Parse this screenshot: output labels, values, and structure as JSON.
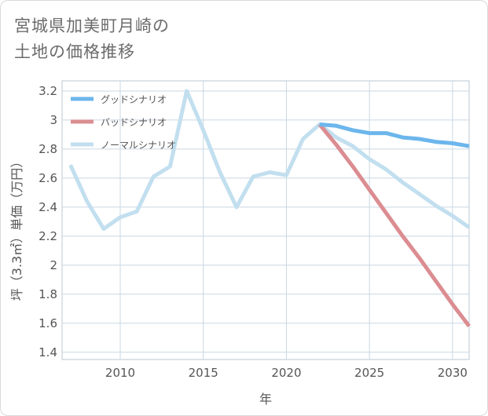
{
  "title": {
    "line1": "宮城県加美町月崎の",
    "line2": "土地の価格推移"
  },
  "chart_data": {
    "type": "line",
    "title": "宮城県加美町月崎の土地の価格推移",
    "xlabel": "年",
    "ylabel": "坪（3.3㎡）単価（万円）",
    "xlim": [
      2006.5,
      2031
    ],
    "ylim": [
      1.35,
      3.27
    ],
    "x_ticks": [
      2010,
      2015,
      2020,
      2025,
      2030
    ],
    "x_tick_labels": [
      "2010",
      "2015",
      "2020",
      "2025",
      "2030"
    ],
    "y_ticks": [
      1.4,
      1.6,
      1.8,
      2,
      2.2,
      2.4,
      2.6,
      2.8,
      3,
      3.2
    ],
    "y_tick_labels": [
      "1.4",
      "1.6",
      "1.8",
      "2",
      "2.2",
      "2.4",
      "2.6",
      "2.8",
      "3",
      "3.2"
    ],
    "grid": true,
    "legend_position": "top-left",
    "series": [
      {
        "name": "グッドシナリオ",
        "color": "#6cb6ec",
        "x": [
          2022,
          2023,
          2024,
          2025,
          2026,
          2027,
          2028,
          2029,
          2030,
          2031
        ],
        "values": [
          2.97,
          2.96,
          2.93,
          2.91,
          2.91,
          2.88,
          2.87,
          2.85,
          2.84,
          2.82
        ]
      },
      {
        "name": "バッドシナリオ",
        "color": "#db8d91",
        "x": [
          2022,
          2023,
          2024,
          2025,
          2026,
          2027,
          2028,
          2029,
          2030,
          2031
        ],
        "values": [
          2.97,
          2.83,
          2.68,
          2.52,
          2.36,
          2.2,
          2.05,
          1.89,
          1.73,
          1.58
        ]
      },
      {
        "name": "ノーマルシナリオ",
        "color": "#c2dfef",
        "x": [
          2007,
          2008,
          2009,
          2010,
          2011,
          2012,
          2013,
          2014,
          2015,
          2016,
          2017,
          2018,
          2019,
          2020,
          2021,
          2022,
          2023,
          2024,
          2025,
          2026,
          2027,
          2028,
          2029,
          2030,
          2031
        ],
        "values": [
          2.69,
          2.44,
          2.25,
          2.33,
          2.37,
          2.61,
          2.68,
          3.2,
          2.93,
          2.64,
          2.4,
          2.61,
          2.64,
          2.62,
          2.87,
          2.97,
          2.88,
          2.82,
          2.73,
          2.66,
          2.57,
          2.49,
          2.41,
          2.34,
          2.26
        ]
      }
    ]
  }
}
